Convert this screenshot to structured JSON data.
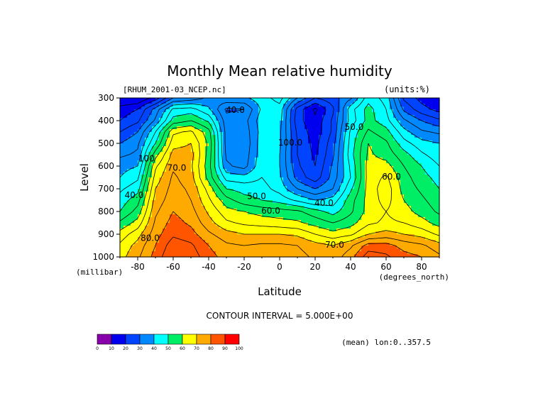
{
  "chart_data": {
    "type": "heatmap",
    "title": "Monthly Mean relative humidity",
    "file_label": "[RHUM_2001-03_NCEP.nc]",
    "units_label": "(units:%)",
    "xlabel": "Latitude",
    "x_unit_label": "(degrees_north)",
    "ylabel": "Level",
    "y_unit_label": "(millibar)",
    "xlim": [
      -90,
      90
    ],
    "ylim": [
      1000,
      300
    ],
    "x_ticks": [
      -80,
      -60,
      -40,
      -20,
      0,
      20,
      40,
      60,
      80
    ],
    "x_tick_labels": [
      "-80",
      "-60",
      "-40",
      "-20",
      "0",
      "20",
      "40",
      "60",
      "80"
    ],
    "y_ticks": [
      300,
      400,
      500,
      600,
      700,
      800,
      900,
      1000
    ],
    "y_tick_labels": [
      "300",
      "400",
      "500",
      "600",
      "700",
      "800",
      "900",
      "1000"
    ],
    "contour_interval_label": "CONTOUR INTERVAL = 5.000E+00",
    "mean_label": "(mean) lon:0..357.5",
    "contour_labels": [
      {
        "text": "40.0",
        "lat": -25,
        "lev": 365
      },
      {
        "text": "50.0",
        "lat": -13,
        "lev": 745
      },
      {
        "text": "60.0",
        "lat": -5,
        "lev": 810
      },
      {
        "text": "40.0",
        "lat": 25,
        "lev": 775
      },
      {
        "text": "50.0",
        "lat": 42,
        "lev": 440
      },
      {
        "text": "60.0",
        "lat": 63,
        "lev": 660
      },
      {
        "text": "70.0",
        "lat": 31,
        "lev": 960
      },
      {
        "text": "100.0",
        "lat": 6,
        "lev": 510
      },
      {
        "text": "40.0",
        "lat": -82,
        "lev": 740
      },
      {
        "text": "70.0",
        "lat": -58,
        "lev": 620
      },
      {
        "text": "80.0",
        "lat": -73,
        "lev": 930
      },
      {
        "text": "100",
        "lat": -75,
        "lev": 580
      }
    ],
    "colorbar": {
      "ticks": [
        "0",
        "10",
        "20",
        "30",
        "40",
        "50",
        "60",
        "70",
        "80",
        "90",
        "100"
      ],
      "colors": [
        "#8800aa",
        "#0000ee",
        "#0044ff",
        "#0088ff",
        "#00ffff",
        "#00ee66",
        "#ffff00",
        "#ffaa00",
        "#ff5500",
        "#ff0000"
      ]
    },
    "levels_mb": [
      300,
      350,
      400,
      450,
      500,
      550,
      600,
      650,
      700,
      750,
      800,
      850,
      900,
      950,
      1000
    ],
    "latitudes": [
      -90,
      -80,
      -70,
      -60,
      -50,
      -40,
      -30,
      -20,
      -10,
      0,
      10,
      20,
      30,
      40,
      50,
      60,
      70,
      80,
      90
    ],
    "values": [
      [
        10,
        10,
        17,
        30,
        32,
        36,
        39,
        39,
        43,
        47,
        35,
        25,
        28,
        34,
        48,
        43,
        24,
        18,
        15
      ],
      [
        17,
        20,
        32,
        46,
        47,
        41,
        29,
        30,
        41,
        43,
        23,
        14,
        24,
        43,
        52,
        45,
        29,
        22,
        18
      ],
      [
        20,
        24,
        36,
        52,
        55,
        49,
        32,
        33,
        43,
        42,
        22,
        16,
        26,
        42,
        52,
        47,
        36,
        30,
        26
      ],
      [
        25,
        30,
        45,
        64,
        66,
        57,
        33,
        32,
        42,
        41,
        24,
        17,
        26,
        46,
        56,
        52,
        42,
        36,
        34
      ],
      [
        30,
        34,
        50,
        68,
        70,
        59,
        33,
        31,
        43,
        41,
        25,
        18,
        28,
        47,
        60,
        56,
        47,
        42,
        40
      ],
      [
        34,
        36,
        58,
        72,
        72,
        58,
        34,
        32,
        43,
        40,
        25,
        19,
        29,
        48,
        61,
        58,
        52,
        46,
        42
      ],
      [
        38,
        40,
        64,
        74,
        71,
        57,
        36,
        33,
        44,
        40,
        26,
        20,
        31,
        46,
        62,
        62,
        55,
        50,
        45
      ],
      [
        40,
        44,
        67,
        76,
        72,
        58,
        43,
        42,
        45,
        41,
        28,
        22,
        32,
        45,
        62,
        66,
        57,
        52,
        48
      ],
      [
        44,
        48,
        70,
        77,
        74,
        63,
        50,
        48,
        47,
        43,
        35,
        30,
        35,
        49,
        62,
        68,
        58,
        54,
        50
      ],
      [
        47,
        53,
        72,
        78,
        75,
        66,
        57,
        52,
        50,
        48,
        44,
        40,
        42,
        53,
        62,
        67,
        60,
        56,
        52
      ],
      [
        50,
        57,
        74,
        80,
        77,
        69,
        62,
        60,
        58,
        57,
        56,
        52,
        48,
        54,
        62,
        65,
        62,
        58,
        54
      ],
      [
        56,
        62,
        76,
        82,
        79,
        72,
        66,
        64,
        63,
        62,
        61,
        58,
        55,
        58,
        64,
        66,
        65,
        62,
        58
      ],
      [
        62,
        68,
        78,
        84,
        82,
        76,
        72,
        70,
        70,
        70,
        69,
        65,
        62,
        64,
        70,
        72,
        70,
        68,
        64
      ],
      [
        66,
        72,
        80,
        88,
        86,
        80,
        76,
        75,
        76,
        76,
        75,
        72,
        70,
        74,
        82,
        82,
        78,
        76,
        72
      ],
      [
        68,
        74,
        82,
        90,
        88,
        82,
        78,
        77,
        78,
        78,
        77,
        74,
        72,
        78,
        88,
        86,
        82,
        80,
        76
      ]
    ]
  }
}
